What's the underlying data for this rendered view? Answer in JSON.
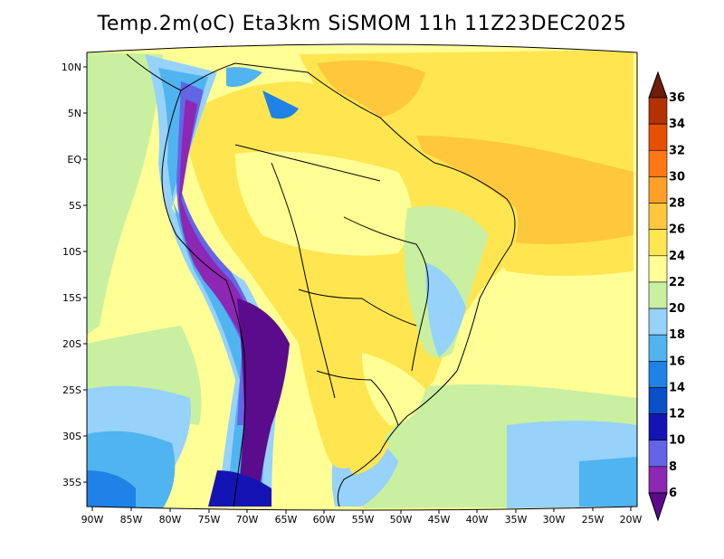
{
  "title": "Temp.2m(oC) Eta3km SiSMOM 11h 11Z23DEC2025",
  "map": {
    "projection": "lambert-conformal",
    "lon_range": [
      -90,
      -20
    ],
    "lat_range": [
      -37,
      12
    ],
    "lat_labels": [
      "10N",
      "5N",
      "EQ",
      "5S",
      "10S",
      "15S",
      "20S",
      "25S",
      "30S",
      "35S"
    ],
    "lon_labels": [
      "90W",
      "85W",
      "80W",
      "75W",
      "70W",
      "65W",
      "60W",
      "55W",
      "50W",
      "45W",
      "40W",
      "35W",
      "30W",
      "25W",
      "20W"
    ]
  },
  "colorbar": {
    "levels": [
      "6",
      "8",
      "10",
      "12",
      "14",
      "16",
      "18",
      "20",
      "22",
      "24",
      "26",
      "28",
      "30",
      "32",
      "34",
      "36"
    ],
    "colors": [
      "#5a0c8c",
      "#8c28b4",
      "#6464e6",
      "#1414b4",
      "#0a50c8",
      "#1e82e6",
      "#50b4f0",
      "#96d2fa",
      "#c8f0a0",
      "#ffff96",
      "#ffe650",
      "#ffc83c",
      "#ffa028",
      "#ff7814",
      "#e65000",
      "#b43200",
      "#6e1e0a"
    ]
  }
}
